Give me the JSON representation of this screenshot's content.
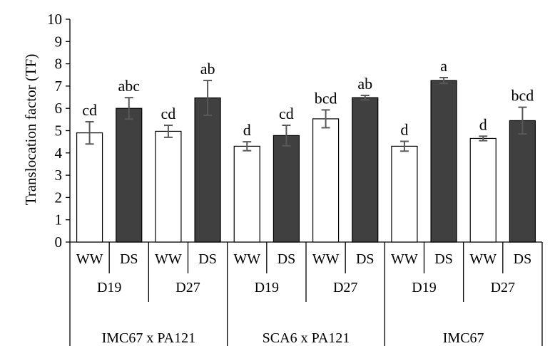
{
  "chart_data": {
    "type": "bar",
    "ylabel": "Translocation factor (TF)",
    "ylim": [
      0,
      10
    ],
    "yticks": [
      0,
      1,
      2,
      3,
      4,
      5,
      6,
      7,
      8,
      9,
      10
    ],
    "grid": false,
    "legend": "none",
    "colors": {
      "WW": "#ffffff",
      "DS": "#404040",
      "errorbar": "#595959",
      "axis": "#000000"
    },
    "bars": [
      {
        "treatment": "WW",
        "harvest": "D19",
        "genotype": "IMC67 x PA121",
        "value": 4.9,
        "error": 0.5,
        "label": "cd"
      },
      {
        "treatment": "DS",
        "harvest": "D19",
        "genotype": "IMC67 x PA121",
        "value": 6.0,
        "error": 0.48,
        "label": "abc"
      },
      {
        "treatment": "WW",
        "harvest": "D27",
        "genotype": "IMC67 x PA121",
        "value": 4.97,
        "error": 0.27,
        "label": "cd"
      },
      {
        "treatment": "DS",
        "harvest": "D27",
        "genotype": "IMC67 x PA121",
        "value": 6.47,
        "error": 0.78,
        "label": "ab"
      },
      {
        "treatment": "WW",
        "harvest": "D19",
        "genotype": "SCA6 x PA121",
        "value": 4.3,
        "error": 0.2,
        "label": "d"
      },
      {
        "treatment": "DS",
        "harvest": "D19",
        "genotype": "SCA6 x PA121",
        "value": 4.78,
        "error": 0.46,
        "label": "cd"
      },
      {
        "treatment": "WW",
        "harvest": "D27",
        "genotype": "SCA6 x PA121",
        "value": 5.53,
        "error": 0.4,
        "label": "bcd"
      },
      {
        "treatment": "DS",
        "harvest": "D27",
        "genotype": "SCA6 x PA121",
        "value": 6.48,
        "error": 0.1,
        "label": "ab"
      },
      {
        "treatment": "WW",
        "harvest": "D19",
        "genotype": "IMC67",
        "value": 4.3,
        "error": 0.22,
        "label": "d"
      },
      {
        "treatment": "DS",
        "harvest": "D19",
        "genotype": "IMC67",
        "value": 7.25,
        "error": 0.13,
        "label": "a"
      },
      {
        "treatment": "WW",
        "harvest": "D27",
        "genotype": "IMC67",
        "value": 4.65,
        "error": 0.1,
        "label": "d"
      },
      {
        "treatment": "DS",
        "harvest": "D27",
        "genotype": "IMC67",
        "value": 5.45,
        "error": 0.6,
        "label": "bcd"
      }
    ],
    "harvest_groups": [
      "D19",
      "D27",
      "D19",
      "D27",
      "D19",
      "D27"
    ],
    "genotype_groups": [
      "IMC67 x PA121",
      "SCA6 x PA121",
      "IMC67"
    ]
  }
}
